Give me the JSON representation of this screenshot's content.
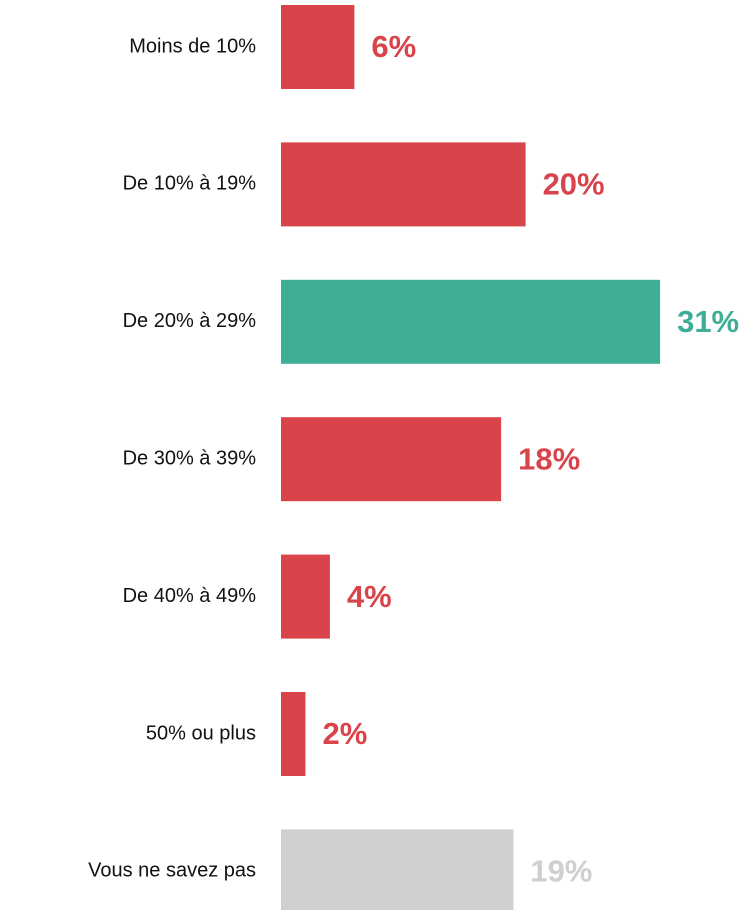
{
  "chart_data": {
    "type": "hbar",
    "categories": [
      "Moins de 10%",
      "De 10% à 19%",
      "De 20% à 29%",
      "De 30% à 39%",
      "De 40% à 49%",
      "50% ou plus",
      "Vous ne savez pas"
    ],
    "values": [
      6,
      20,
      31,
      18,
      4,
      2,
      19
    ],
    "value_labels": [
      "6%",
      "20%",
      "31%",
      "18%",
      "4%",
      "2%",
      "19%"
    ],
    "colors": [
      "#d9444b",
      "#d9444b",
      "#3fae96",
      "#d9444b",
      "#d9444b",
      "#d9444b",
      "#d0cfd0"
    ],
    "xlim": [
      0,
      35
    ]
  }
}
